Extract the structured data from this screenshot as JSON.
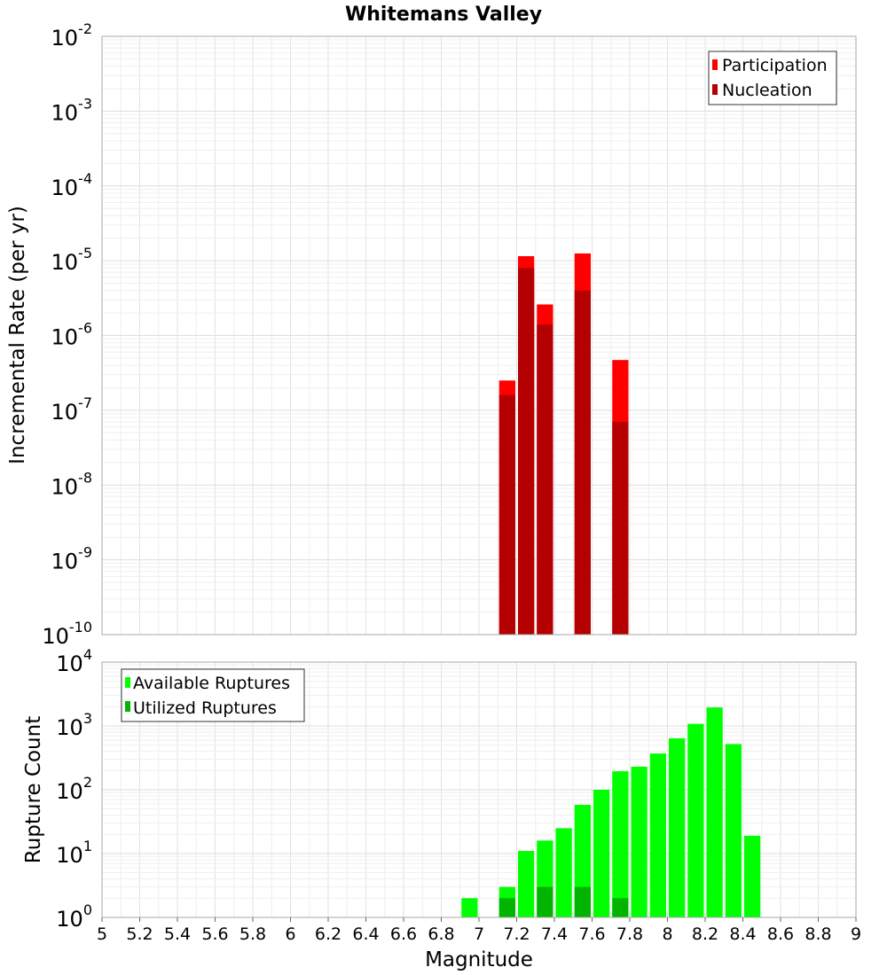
{
  "chart_data": [
    {
      "type": "bar",
      "title": "Whitemans Valley",
      "xlabel": "",
      "ylabel": "Incremental Rate (per yr)",
      "yscale": "log",
      "ylim_exponents": [
        -10,
        -2
      ],
      "xlim": [
        5,
        9
      ],
      "bin_width": 0.1,
      "legend_position": "top-right",
      "series": [
        {
          "name": "Participation",
          "color": "#ff0000",
          "points": [
            {
              "x": 7.15,
              "y": 2.5e-07
            },
            {
              "x": 7.25,
              "y": 1.15e-05
            },
            {
              "x": 7.35,
              "y": 2.6e-06
            },
            {
              "x": 7.55,
              "y": 1.25e-05
            },
            {
              "x": 7.75,
              "y": 4.7e-07
            }
          ]
        },
        {
          "name": "Nucleation",
          "color": "#b40000",
          "points": [
            {
              "x": 7.15,
              "y": 1.6e-07
            },
            {
              "x": 7.25,
              "y": 8e-06
            },
            {
              "x": 7.35,
              "y": 1.4e-06
            },
            {
              "x": 7.55,
              "y": 4e-06
            },
            {
              "x": 7.75,
              "y": 7e-08
            }
          ]
        }
      ]
    },
    {
      "type": "bar",
      "title": "",
      "xlabel": "Magnitude",
      "ylabel": "Rupture Count",
      "yscale": "log",
      "ylim_exponents": [
        0,
        4
      ],
      "xlim": [
        5,
        9
      ],
      "bin_width": 0.1,
      "legend_position": "top-left",
      "series": [
        {
          "name": "Available Ruptures",
          "color": "#00ff00",
          "points": [
            {
              "x": 6.95,
              "y": 2
            },
            {
              "x": 7.15,
              "y": 3
            },
            {
              "x": 7.25,
              "y": 11
            },
            {
              "x": 7.35,
              "y": 16
            },
            {
              "x": 7.45,
              "y": 25
            },
            {
              "x": 7.55,
              "y": 58
            },
            {
              "x": 7.65,
              "y": 100
            },
            {
              "x": 7.75,
              "y": 195
            },
            {
              "x": 7.85,
              "y": 230
            },
            {
              "x": 7.95,
              "y": 370
            },
            {
              "x": 8.05,
              "y": 640
            },
            {
              "x": 8.15,
              "y": 1080
            },
            {
              "x": 8.25,
              "y": 1950
            },
            {
              "x": 8.35,
              "y": 520
            },
            {
              "x": 8.45,
              "y": 19
            }
          ]
        },
        {
          "name": "Utilized Ruptures",
          "color": "#00b400",
          "points": [
            {
              "x": 7.15,
              "y": 2
            },
            {
              "x": 7.25,
              "y": 1
            },
            {
              "x": 7.35,
              "y": 3
            },
            {
              "x": 7.55,
              "y": 3
            },
            {
              "x": 7.75,
              "y": 2
            },
            {
              "x": 7.85,
              "y": 1
            }
          ]
        }
      ]
    }
  ],
  "x_tick_labels": [
    "5",
    "5.2",
    "5.4",
    "5.6",
    "5.8",
    "6",
    "6.2",
    "6.4",
    "6.6",
    "6.8",
    "7",
    "7.2",
    "7.4",
    "7.6",
    "7.8",
    "8",
    "8.2",
    "8.4",
    "8.6",
    "8.8",
    "9"
  ]
}
